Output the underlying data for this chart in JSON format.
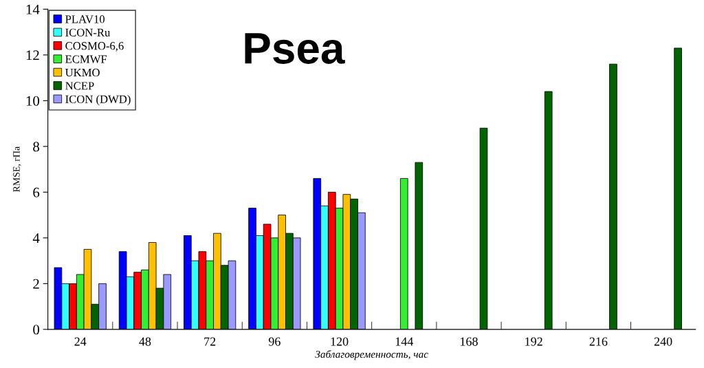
{
  "chart_data": {
    "type": "bar",
    "title": "Psea",
    "ylabel": "RMSE, гПа",
    "xlabel": "Заблаговременность, час",
    "categories": [
      "24",
      "48",
      "72",
      "96",
      "120",
      "144",
      "168",
      "192",
      "216",
      "240"
    ],
    "series": [
      {
        "name": "PLAV10",
        "color": "#0000ff",
        "values": [
          2.7,
          3.4,
          4.1,
          5.3,
          6.6,
          null,
          null,
          null,
          null,
          null
        ]
      },
      {
        "name": "ICON-Ru",
        "color": "#33ffff",
        "values": [
          2.0,
          2.3,
          3.0,
          4.1,
          5.4,
          null,
          null,
          null,
          null,
          null
        ]
      },
      {
        "name": "COSMO-6,6",
        "color": "#ff0000",
        "values": [
          2.0,
          2.5,
          3.4,
          4.6,
          6.0,
          null,
          null,
          null,
          null,
          null
        ]
      },
      {
        "name": "ECMWF",
        "color": "#33ee33",
        "values": [
          2.4,
          2.6,
          3.0,
          4.0,
          5.3,
          6.6,
          null,
          null,
          null,
          null
        ]
      },
      {
        "name": "UKMO",
        "color": "#ffc000",
        "values": [
          3.5,
          3.8,
          4.2,
          5.0,
          5.9,
          null,
          null,
          null,
          null,
          null
        ]
      },
      {
        "name": "NCEP",
        "color": "#006400",
        "values": [
          1.1,
          1.8,
          2.8,
          4.2,
          5.7,
          7.3,
          8.8,
          10.4,
          11.6,
          12.3
        ]
      },
      {
        "name": "ICON (DWD)",
        "color": "#9999ff",
        "values": [
          2.0,
          2.4,
          3.0,
          4.0,
          5.1,
          null,
          null,
          null,
          null,
          null
        ]
      }
    ],
    "ylim": [
      0,
      14
    ],
    "yticks": [
      0,
      2,
      4,
      6,
      8,
      10,
      12,
      14
    ],
    "legend": "top left",
    "grid": false
  }
}
